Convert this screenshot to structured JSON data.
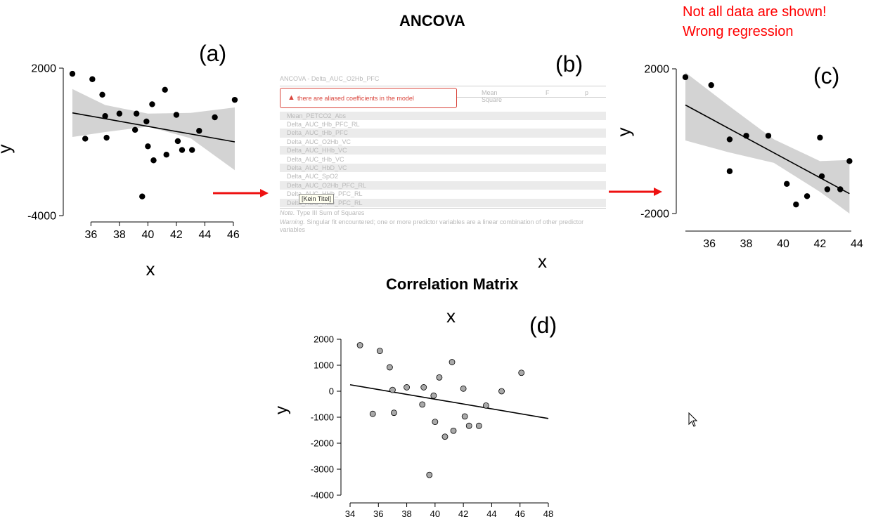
{
  "headings": {
    "ancova": "ANCOVA",
    "correlation_matrix": "Correlation Matrix"
  },
  "warning_note": {
    "line1": "Not all data are shown!",
    "line2": "Wrong regression",
    "color": "#ff0000"
  },
  "panel_labels": {
    "a": "(a)",
    "b": "(b)",
    "c": "(c)",
    "d": "(d)"
  },
  "stray_axis_labels": {
    "x_b": "x",
    "x_d": "x"
  },
  "arrow_color": "#ee1111",
  "ancova_table": {
    "title": "ANCOVA - Delta_AUC_O2Hb_PFC",
    "columns": [
      "Mean Square",
      "F",
      "p"
    ],
    "alert": "there are aliased coefficients in the model",
    "rows": [
      "Mean_PETCO2_Abs",
      "Delta_AUC_tHb_PFC_RL",
      "Delta_AUC_tHb_PFC",
      "Delta_AUC_O2Hb_VC",
      "Delta_AUC_HHb_VC",
      "Delta_AUC_tHb_VC",
      "Delta_AUC_HbD_VC",
      "Delta_AUC_SpO2",
      "Delta_AUC_O2Hb_PFC_RL",
      "Delta_AUC_HHb_PFC_RL",
      "Delta_AUC_HbD_PFC_RL"
    ],
    "tooltip": "[Kein Titel]",
    "note_label": "Note.",
    "note_text": "Type III Sum of Squares",
    "warning_label": "Warning.",
    "warning_text": "Singular fit encountered; one or more predictor variables are a linear combination of other predictor variables"
  },
  "chart_data": [
    {
      "id": "a",
      "type": "scatter",
      "xlabel": "x",
      "ylabel": "y",
      "xticks": [
        36,
        38,
        40,
        42,
        44,
        46
      ],
      "yticks": [
        2000,
        -4000
      ],
      "xlim": [
        34.7,
        46.3
      ],
      "ylim": [
        -4000,
        2000
      ],
      "point_color": "#000000",
      "points": [
        [
          34.7,
          1770
        ],
        [
          35.6,
          -870
        ],
        [
          36.1,
          1550
        ],
        [
          36.8,
          920
        ],
        [
          37.0,
          50
        ],
        [
          37.1,
          -830
        ],
        [
          38.0,
          150
        ],
        [
          39.1,
          -510
        ],
        [
          39.2,
          150
        ],
        [
          39.9,
          -170
        ],
        [
          40.0,
          -1180
        ],
        [
          40.3,
          530
        ],
        [
          40.4,
          -1750
        ],
        [
          41.2,
          1120
        ],
        [
          41.3,
          -1520
        ],
        [
          42.0,
          100
        ],
        [
          42.1,
          -970
        ],
        [
          42.4,
          -1330
        ],
        [
          43.1,
          -1330
        ],
        [
          43.6,
          -550
        ],
        [
          44.7,
          0
        ],
        [
          46.1,
          710
        ],
        [
          39.6,
          -3220
        ]
      ],
      "regression": {
        "x": [
          34.7,
          46.1
        ],
        "y": [
          180,
          -1000
        ]
      },
      "confidence_band": {
        "x": [
          34.7,
          37,
          40,
          43,
          46.1
        ],
        "upper": [
          1150,
          500,
          150,
          180,
          400
        ],
        "lower": [
          -800,
          -600,
          -380,
          -850,
          -2150
        ]
      },
      "band_color": "#d3d3d3"
    },
    {
      "id": "c",
      "type": "scatter",
      "xlabel": "x",
      "ylabel": "y",
      "xticks": [
        36,
        38,
        40,
        42,
        44
      ],
      "yticks": [
        2000,
        -2000
      ],
      "xlim": [
        34.7,
        43.7
      ],
      "ylim": [
        -2000,
        2000
      ],
      "point_color": "#000000",
      "points": [
        [
          34.7,
          1770
        ],
        [
          36.1,
          1550
        ],
        [
          37.1,
          50
        ],
        [
          37.1,
          -830
        ],
        [
          38.0,
          150
        ],
        [
          39.2,
          150
        ],
        [
          40.2,
          -1180
        ],
        [
          40.7,
          -1750
        ],
        [
          41.3,
          -1520
        ],
        [
          42.0,
          100
        ],
        [
          42.1,
          -970
        ],
        [
          42.4,
          -1330
        ],
        [
          43.1,
          -1330
        ],
        [
          43.6,
          -550
        ]
      ],
      "regression": {
        "x": [
          34.7,
          43.6
        ],
        "y": [
          1000,
          -1450
        ]
      },
      "confidence_band": {
        "x": [
          34.7,
          37,
          39.5,
          42,
          43.6
        ],
        "upper": [
          1900,
          1000,
          50,
          -550,
          -520
        ],
        "lower": [
          20,
          -300,
          -600,
          -1400,
          -2000
        ]
      },
      "band_color": "#d3d3d3"
    },
    {
      "id": "d",
      "type": "scatter",
      "xlabel": "x",
      "ylabel": "y",
      "xticks": [
        34,
        36,
        38,
        40,
        42,
        44,
        46,
        48
      ],
      "yticks": [
        2000,
        1000,
        0,
        -1000,
        -2000,
        -3000,
        -4000
      ],
      "xlim": [
        34,
        48
      ],
      "ylim": [
        -4000,
        2000
      ],
      "point_color": "#a9a9a9",
      "points": [
        [
          34.7,
          1770
        ],
        [
          35.6,
          -870
        ],
        [
          36.1,
          1550
        ],
        [
          36.8,
          920
        ],
        [
          37.0,
          50
        ],
        [
          37.1,
          -830
        ],
        [
          38.0,
          150
        ],
        [
          39.1,
          -510
        ],
        [
          39.2,
          150
        ],
        [
          39.9,
          -170
        ],
        [
          40.0,
          -1180
        ],
        [
          40.3,
          530
        ],
        [
          40.7,
          -1750
        ],
        [
          41.2,
          1120
        ],
        [
          41.3,
          -1520
        ],
        [
          42.0,
          100
        ],
        [
          42.1,
          -970
        ],
        [
          42.4,
          -1330
        ],
        [
          43.1,
          -1330
        ],
        [
          43.6,
          -550
        ],
        [
          44.7,
          0
        ],
        [
          46.1,
          710
        ],
        [
          39.6,
          -3220
        ]
      ],
      "regression": {
        "x": [
          34.0,
          48.0
        ],
        "y": [
          250,
          -1050
        ]
      }
    }
  ]
}
